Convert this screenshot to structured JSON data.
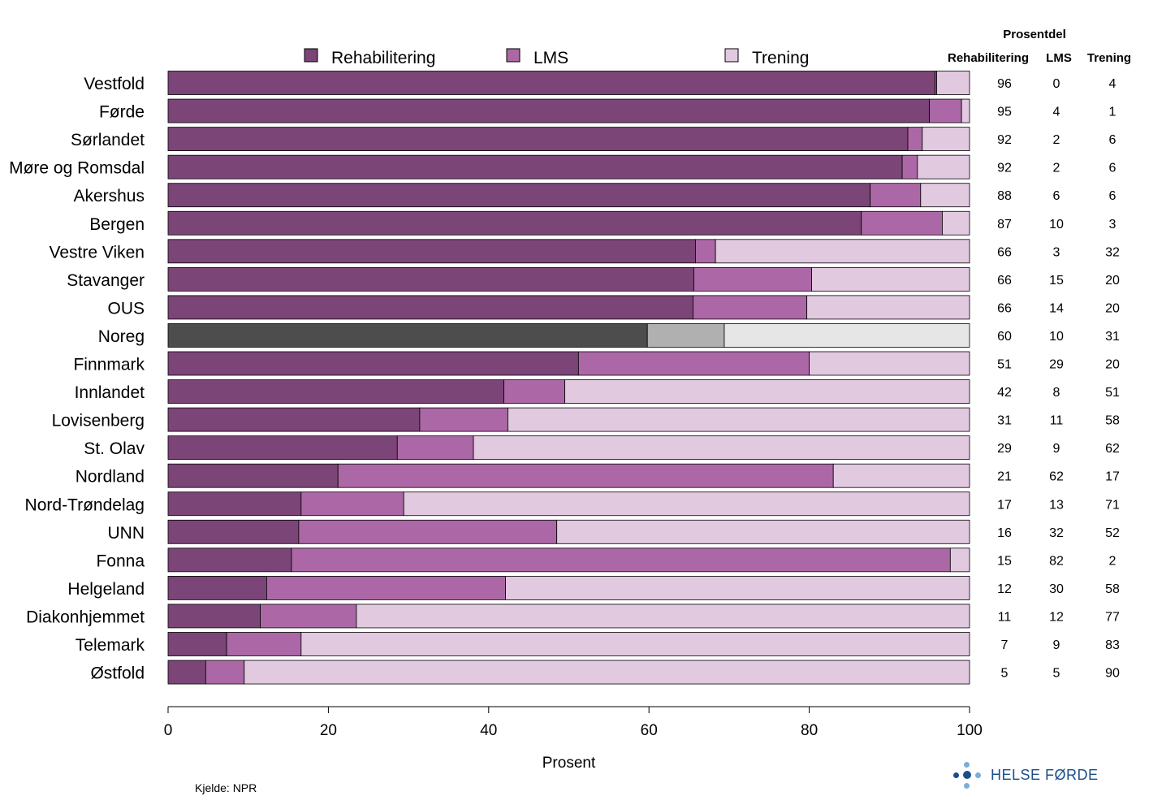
{
  "chart_data": {
    "type": "bar",
    "orientation": "horizontal",
    "stacked": true,
    "xlabel": "Prosent",
    "xlim": [
      0,
      100
    ],
    "xticks": [
      0,
      20,
      40,
      60,
      80,
      100
    ],
    "legend": {
      "placement": "top",
      "entries": [
        "Rehabilitering",
        "LMS",
        "Trening"
      ]
    },
    "table_header": {
      "title": "Prosentdel",
      "columns": [
        "Rehabilitering",
        "LMS",
        "Trening"
      ]
    },
    "categories": [
      "Vestfold",
      "Førde",
      "Sørlandet",
      "Møre og Romsdal",
      "Akershus",
      "Bergen",
      "Vestre Viken",
      "Stavanger",
      "OUS",
      "Noreg",
      "Finnmark",
      "Innlandet",
      "Lovisenberg",
      "St. Olav",
      "Nordland",
      "Nord-Trøndelag",
      "UNN",
      "Fonna",
      "Helgeland",
      "Diakonhjemmet",
      "Telemark",
      "Østfold"
    ],
    "highlight_category": "Noreg",
    "series": [
      {
        "name": "Rehabilitering",
        "color": "#7b4577",
        "highlight_color": "#4d4d4d",
        "values": [
          95.7,
          95.0,
          92.3,
          91.6,
          87.6,
          86.5,
          65.8,
          65.6,
          65.5,
          59.8,
          51.2,
          41.9,
          31.4,
          28.6,
          21.2,
          16.6,
          16.3,
          15.4,
          12.3,
          11.5,
          7.3,
          4.7
        ]
      },
      {
        "name": "LMS",
        "color": "#ac68a6",
        "highlight_color": "#b0b0b0",
        "values": [
          0.2,
          4.0,
          1.8,
          1.9,
          6.3,
          10.1,
          2.5,
          14.7,
          14.2,
          9.6,
          28.8,
          7.6,
          11.0,
          9.5,
          61.8,
          12.8,
          32.2,
          82.2,
          29.8,
          12.0,
          9.3,
          4.8
        ]
      },
      {
        "name": "Trening",
        "color": "#e1c9e0",
        "highlight_color": "#e6e6e6",
        "values": [
          4.1,
          1.0,
          5.9,
          6.5,
          6.1,
          3.4,
          31.7,
          19.7,
          20.3,
          30.6,
          20.0,
          50.5,
          57.6,
          61.9,
          17.0,
          70.6,
          51.5,
          2.4,
          57.9,
          76.5,
          83.4,
          90.5
        ]
      }
    ],
    "table": [
      [
        96,
        0,
        4
      ],
      [
        95,
        4,
        1
      ],
      [
        92,
        2,
        6
      ],
      [
        92,
        2,
        6
      ],
      [
        88,
        6,
        6
      ],
      [
        87,
        10,
        3
      ],
      [
        66,
        3,
        32
      ],
      [
        66,
        15,
        20
      ],
      [
        66,
        14,
        20
      ],
      [
        60,
        10,
        31
      ],
      [
        51,
        29,
        20
      ],
      [
        42,
        8,
        51
      ],
      [
        31,
        11,
        58
      ],
      [
        29,
        9,
        62
      ],
      [
        21,
        62,
        17
      ],
      [
        17,
        13,
        71
      ],
      [
        16,
        32,
        52
      ],
      [
        15,
        82,
        2
      ],
      [
        12,
        30,
        58
      ],
      [
        11,
        12,
        77
      ],
      [
        7,
        9,
        83
      ],
      [
        5,
        5,
        90
      ]
    ]
  },
  "footer": {
    "source": "Kjelde: NPR",
    "logo_text": "HELSE FØRDE"
  },
  "colors": {
    "logo_blue": "#1b4f8a",
    "logo_light": "#7aaedb"
  }
}
